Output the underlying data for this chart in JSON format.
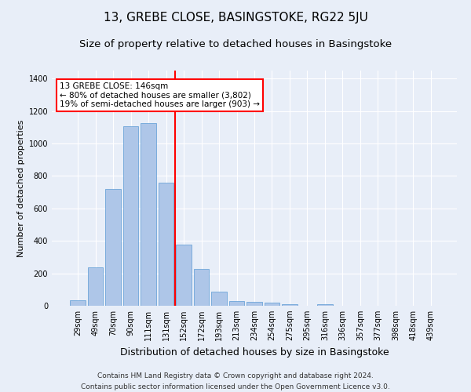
{
  "title": "13, GREBE CLOSE, BASINGSTOKE, RG22 5JU",
  "subtitle": "Size of property relative to detached houses in Basingstoke",
  "xlabel": "Distribution of detached houses by size in Basingstoke",
  "ylabel": "Number of detached properties",
  "footer_line1": "Contains HM Land Registry data © Crown copyright and database right 2024.",
  "footer_line2": "Contains public sector information licensed under the Open Government Licence v3.0.",
  "bar_labels": [
    "29sqm",
    "49sqm",
    "70sqm",
    "90sqm",
    "111sqm",
    "131sqm",
    "152sqm",
    "172sqm",
    "193sqm",
    "213sqm",
    "234sqm",
    "254sqm",
    "275sqm",
    "295sqm",
    "316sqm",
    "336sqm",
    "357sqm",
    "377sqm",
    "398sqm",
    "418sqm",
    "439sqm"
  ],
  "bar_values": [
    32,
    237,
    720,
    1105,
    1125,
    760,
    375,
    225,
    88,
    30,
    22,
    20,
    12,
    0,
    12,
    0,
    0,
    0,
    0,
    0,
    0
  ],
  "bar_color": "#aec6e8",
  "bar_edgecolor": "#5b9bd5",
  "vline_x": 5.5,
  "vline_color": "red",
  "ylim": [
    0,
    1450
  ],
  "annotation_text": "13 GREBE CLOSE: 146sqm\n← 80% of detached houses are smaller (3,802)\n19% of semi-detached houses are larger (903) →",
  "annotation_box_color": "white",
  "annotation_box_edgecolor": "red",
  "background_color": "#e8eef8",
  "plot_background_color": "#e8eef8",
  "title_fontsize": 11,
  "subtitle_fontsize": 9.5,
  "xlabel_fontsize": 9,
  "ylabel_fontsize": 8,
  "tick_fontsize": 7,
  "annotation_fontsize": 7.5,
  "footer_fontsize": 6.5
}
